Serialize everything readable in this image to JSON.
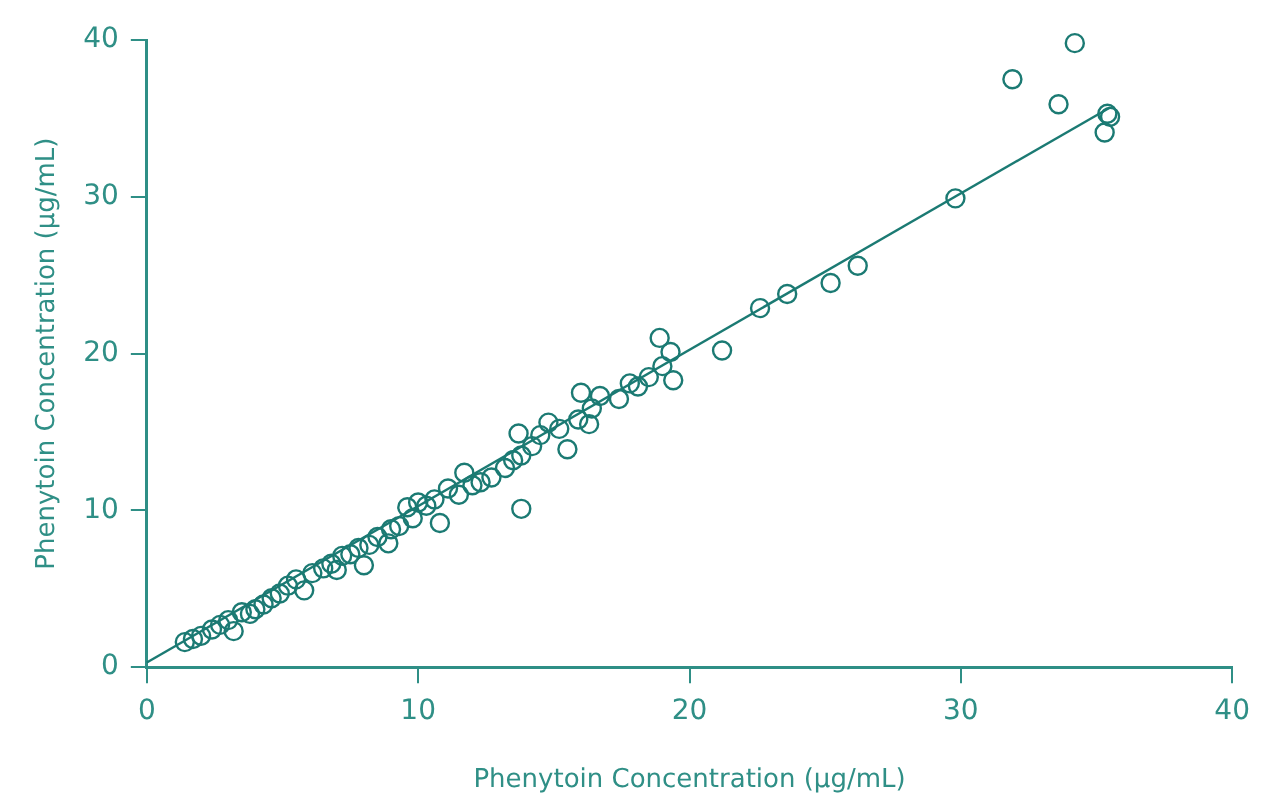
{
  "chart_data": {
    "type": "scatter",
    "xlabel": "Phenytoin Concentration (μg/mL)",
    "ylabel": "Phenytoin Concentration (μg/mL)",
    "xlim": [
      0,
      40
    ],
    "ylim": [
      0,
      40
    ],
    "xticks": [
      0,
      10,
      20,
      30,
      40
    ],
    "yticks": [
      0,
      10,
      20,
      30,
      40
    ],
    "grid": false,
    "legend": false,
    "marker": "circle",
    "series": [
      {
        "color": "#1b7a73",
        "x": [
          31.9,
          34.2,
          33.6,
          35.4,
          35.5,
          35.3,
          29.8,
          26.2,
          25.2,
          23.6,
          22.6,
          21.2,
          19.4,
          19.3,
          18.9,
          19.0,
          18.5,
          18.1,
          17.8,
          17.4,
          16.7,
          16.4,
          16.3,
          16.0,
          15.9,
          15.5,
          15.2,
          14.8,
          14.5,
          14.2,
          13.8,
          13.7,
          13.8,
          13.5,
          13.2,
          12.7,
          12.3,
          12.0,
          11.7,
          11.5,
          11.1,
          10.8,
          10.6,
          10.3,
          10.0,
          9.8,
          9.6,
          9.3,
          9.0,
          8.9,
          8.5,
          8.2,
          8.0,
          7.8,
          7.5,
          7.2,
          7.0,
          6.8,
          6.5,
          6.1,
          5.8,
          5.5,
          5.2,
          4.9,
          4.6,
          4.3,
          4.0,
          3.8,
          3.5,
          3.2,
          3.0,
          2.7,
          2.4,
          2.0,
          1.7,
          1.4
        ],
        "values": [
          37.5,
          39.8,
          35.9,
          35.3,
          35.1,
          34.1,
          29.9,
          25.6,
          24.5,
          23.8,
          22.9,
          20.2,
          18.3,
          20.1,
          21.0,
          19.2,
          18.5,
          17.9,
          18.1,
          17.1,
          17.3,
          16.5,
          15.5,
          17.5,
          15.8,
          13.9,
          15.2,
          15.6,
          14.8,
          14.1,
          13.5,
          14.9,
          10.1,
          13.2,
          12.7,
          12.1,
          11.8,
          11.6,
          12.4,
          11.0,
          11.4,
          9.2,
          10.7,
          10.3,
          10.5,
          9.5,
          10.2,
          9.0,
          8.8,
          7.9,
          8.3,
          7.8,
          6.5,
          7.6,
          7.2,
          7.1,
          6.2,
          6.6,
          6.3,
          6.0,
          4.9,
          5.6,
          5.2,
          4.7,
          4.4,
          4.0,
          3.7,
          3.4,
          3.5,
          2.3,
          3.0,
          2.7,
          2.4,
          2.0,
          1.8,
          1.6
        ]
      },
      {
        "type": "line",
        "color": "#1b7a73",
        "marker": "none",
        "x": [
          0,
          35.5
        ],
        "values": [
          0.3,
          35.7
        ]
      }
    ]
  }
}
